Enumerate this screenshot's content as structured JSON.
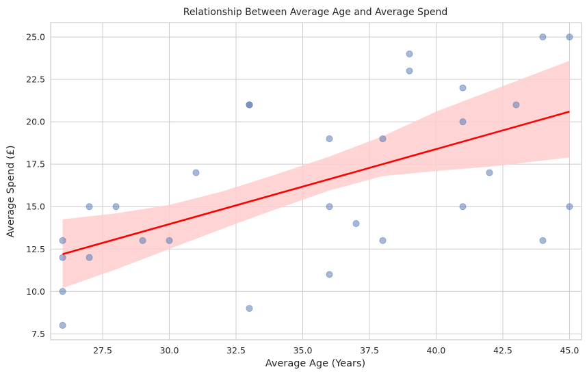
{
  "chart_data": {
    "type": "scatter",
    "title": "Relationship Between Average Age and Average Spend",
    "xlabel": "Average Age (Years)",
    "ylabel": "Average Spend (£)",
    "xlim": [
      25.55,
      45.45
    ],
    "ylim": [
      7.15,
      25.85
    ],
    "xticks": [
      "27.5",
      "30.0",
      "32.5",
      "35.0",
      "37.5",
      "40.0",
      "42.5",
      "45.0"
    ],
    "yticks": [
      "7.5",
      "10.0",
      "12.5",
      "15.0",
      "17.5",
      "20.0",
      "22.5",
      "25.0"
    ],
    "grid": true,
    "points": [
      {
        "x": 26,
        "y": 13
      },
      {
        "x": 26,
        "y": 12
      },
      {
        "x": 26,
        "y": 10
      },
      {
        "x": 26,
        "y": 8
      },
      {
        "x": 27,
        "y": 15
      },
      {
        "x": 27,
        "y": 12
      },
      {
        "x": 28,
        "y": 15
      },
      {
        "x": 29,
        "y": 13
      },
      {
        "x": 30,
        "y": 13
      },
      {
        "x": 31,
        "y": 17
      },
      {
        "x": 33,
        "y": 21
      },
      {
        "x": 33,
        "y": 21
      },
      {
        "x": 33,
        "y": 9
      },
      {
        "x": 36,
        "y": 19
      },
      {
        "x": 36,
        "y": 15
      },
      {
        "x": 36,
        "y": 11
      },
      {
        "x": 37,
        "y": 14
      },
      {
        "x": 38,
        "y": 19
      },
      {
        "x": 38,
        "y": 13
      },
      {
        "x": 39,
        "y": 24
      },
      {
        "x": 39,
        "y": 23
      },
      {
        "x": 41,
        "y": 22
      },
      {
        "x": 41,
        "y": 20
      },
      {
        "x": 41,
        "y": 15
      },
      {
        "x": 42,
        "y": 17
      },
      {
        "x": 43,
        "y": 21
      },
      {
        "x": 44,
        "y": 25
      },
      {
        "x": 44,
        "y": 13
      },
      {
        "x": 45,
        "y": 25
      },
      {
        "x": 45,
        "y": 15
      }
    ],
    "regression": {
      "x": [
        26,
        45
      ],
      "y": [
        12.2,
        20.6
      ],
      "ci": [
        {
          "x": 26,
          "lo": 10.2,
          "hi": 14.25
        },
        {
          "x": 28,
          "lo": 11.3,
          "hi": 14.6
        },
        {
          "x": 30,
          "lo": 12.5,
          "hi": 15.1
        },
        {
          "x": 32,
          "lo": 13.7,
          "hi": 15.9
        },
        {
          "x": 34,
          "lo": 14.85,
          "hi": 16.9
        },
        {
          "x": 36,
          "lo": 15.95,
          "hi": 17.95
        },
        {
          "x": 38,
          "lo": 16.8,
          "hi": 19.15
        },
        {
          "x": 40,
          "lo": 17.1,
          "hi": 20.6
        },
        {
          "x": 42,
          "lo": 17.35,
          "hi": 21.8
        },
        {
          "x": 45,
          "lo": 17.9,
          "hi": 23.6
        }
      ]
    },
    "colors": {
      "points": "#4c72b0",
      "line": "#ff0000",
      "band": "#ffcccc"
    }
  }
}
